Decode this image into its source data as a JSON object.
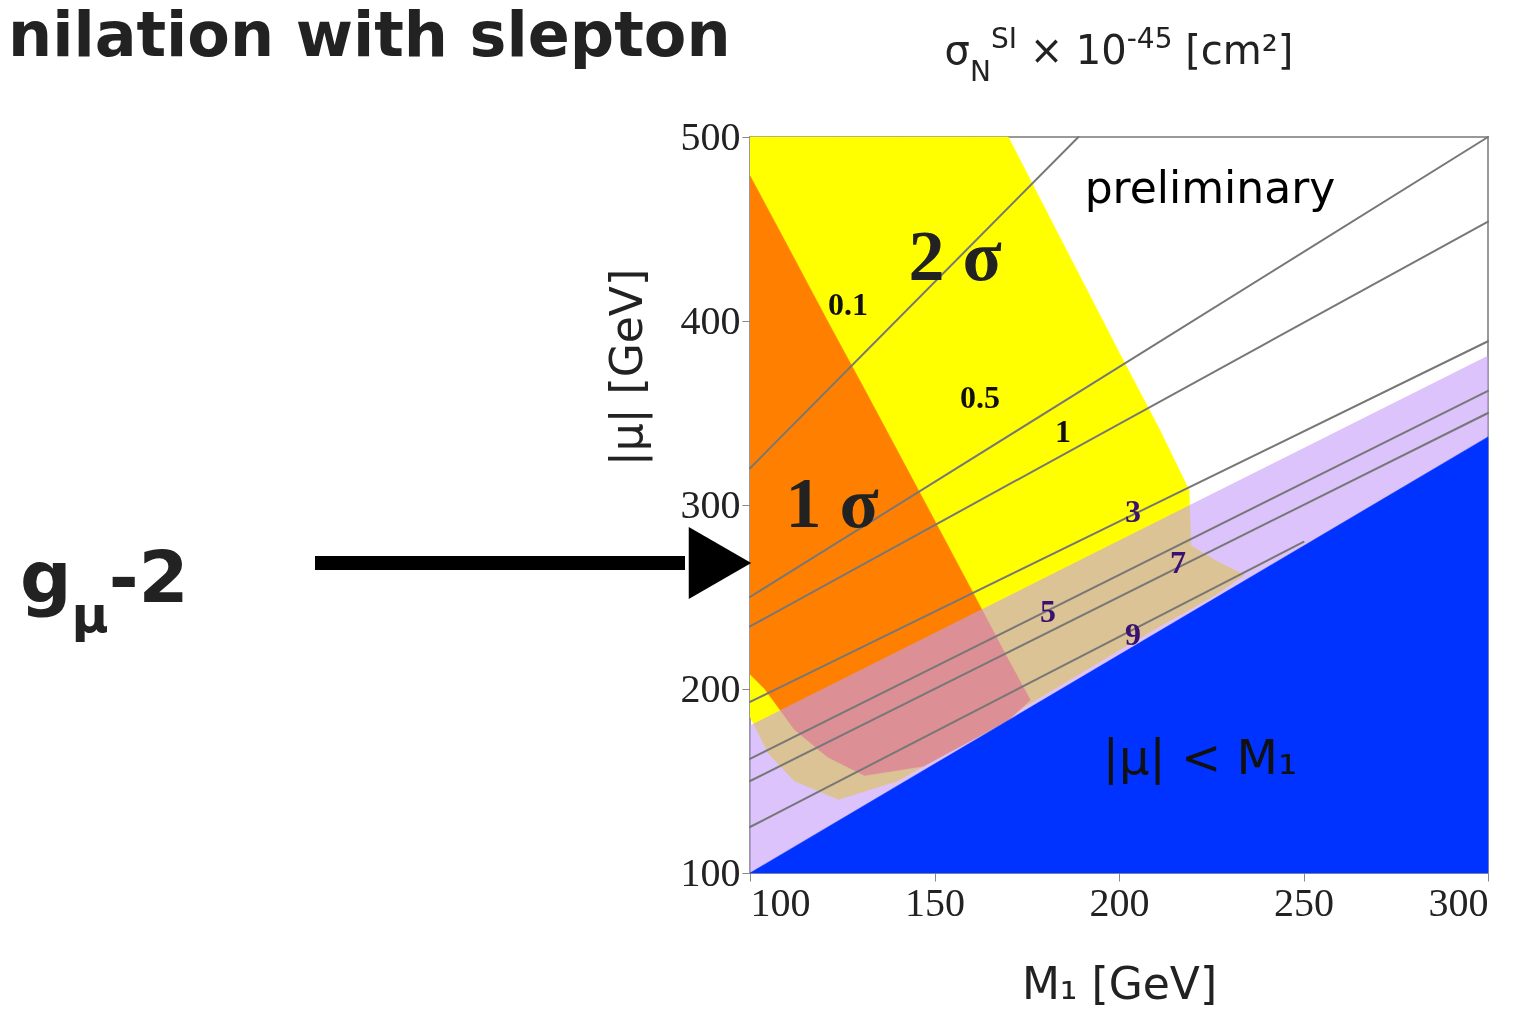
{
  "chart_data": {
    "type": "line",
    "title": "σ$_{N}$$^{SI}$ × 10$^{-45}$ [cm²]",
    "xlabel": "M₁ [GeV]",
    "ylabel": "|μ| [GeV]",
    "xlim": [
      100,
      300
    ],
    "ylim": [
      100,
      500
    ],
    "xticks": [
      100,
      150,
      200,
      250,
      300
    ],
    "yticks": [
      100,
      200,
      300,
      400,
      500
    ],
    "grid": false,
    "series": [
      {
        "type": "area",
        "color": "#ffff00",
        "x": [
          100,
          105,
          112,
          124,
          140,
          160,
          170,
          180,
          190,
          200,
          211,
          219,
          219.5,
          226,
          234,
          226,
          219,
          211,
          200,
          190,
          180,
          170,
          160,
          140,
          124,
          112,
          105,
          100
        ],
        "values": [
          500,
          500,
          500,
          500,
          500,
          500,
          500,
          461,
          422,
          383,
          341,
          308,
          278,
          270,
          262,
          251,
          243,
          234,
          221,
          209,
          197,
          185,
          173,
          150,
          140,
          150,
          165,
          185
        ]
      },
      {
        "type": "area",
        "color": "#ff8000",
        "x": [
          100,
          104,
          112,
          121,
          131,
          147,
          160,
          170,
          176,
          170,
          160,
          147,
          131,
          121,
          112,
          104,
          100
        ],
        "values": [
          479,
          464,
          434,
          400,
          363,
          303,
          254,
          216,
          194,
          183,
          172,
          158,
          153,
          163,
          178,
          200,
          208
        ]
      },
      {
        "type": "area",
        "color": "#c59bf8",
        "x": [
          100,
          300,
          300,
          100
        ],
        "values": [
          180,
          381,
          337,
          100
        ]
      },
      {
        "type": "area",
        "color": "#0033ff",
        "x": [
          100,
          300,
          300,
          100
        ],
        "values": [
          100,
          337,
          100,
          100
        ]
      },
      {
        "color": "#777777",
        "x": [
          100,
          189
        ],
        "values": [
          320,
          500
        ]
      },
      {
        "color": "#777777",
        "x": [
          100,
          300
        ],
        "values": [
          250,
          500
        ]
      },
      {
        "color": "#777777",
        "x": [
          100,
          300
        ],
        "values": [
          234,
          454
        ]
      },
      {
        "color": "#777777",
        "x": [
          100,
          300
        ],
        "values": [
          193,
          389
        ]
      },
      {
        "color": "#777777",
        "x": [
          100,
          300
        ],
        "values": [
          162,
          362
        ]
      },
      {
        "color": "#777777",
        "x": [
          100,
          300
        ],
        "values": [
          150,
          350
        ]
      },
      {
        "color": "#777777",
        "x": [
          100,
          250
        ],
        "values": [
          125,
          280
        ]
      }
    ],
    "annotations": [
      "g$_{μ}$-2",
      "nilation with slepton",
      "preliminary",
      "2 σ",
      "1 σ",
      "|μ| < M₁",
      "0.1",
      "0.5",
      "1",
      "3",
      "5",
      "7",
      "9"
    ]
  }
}
